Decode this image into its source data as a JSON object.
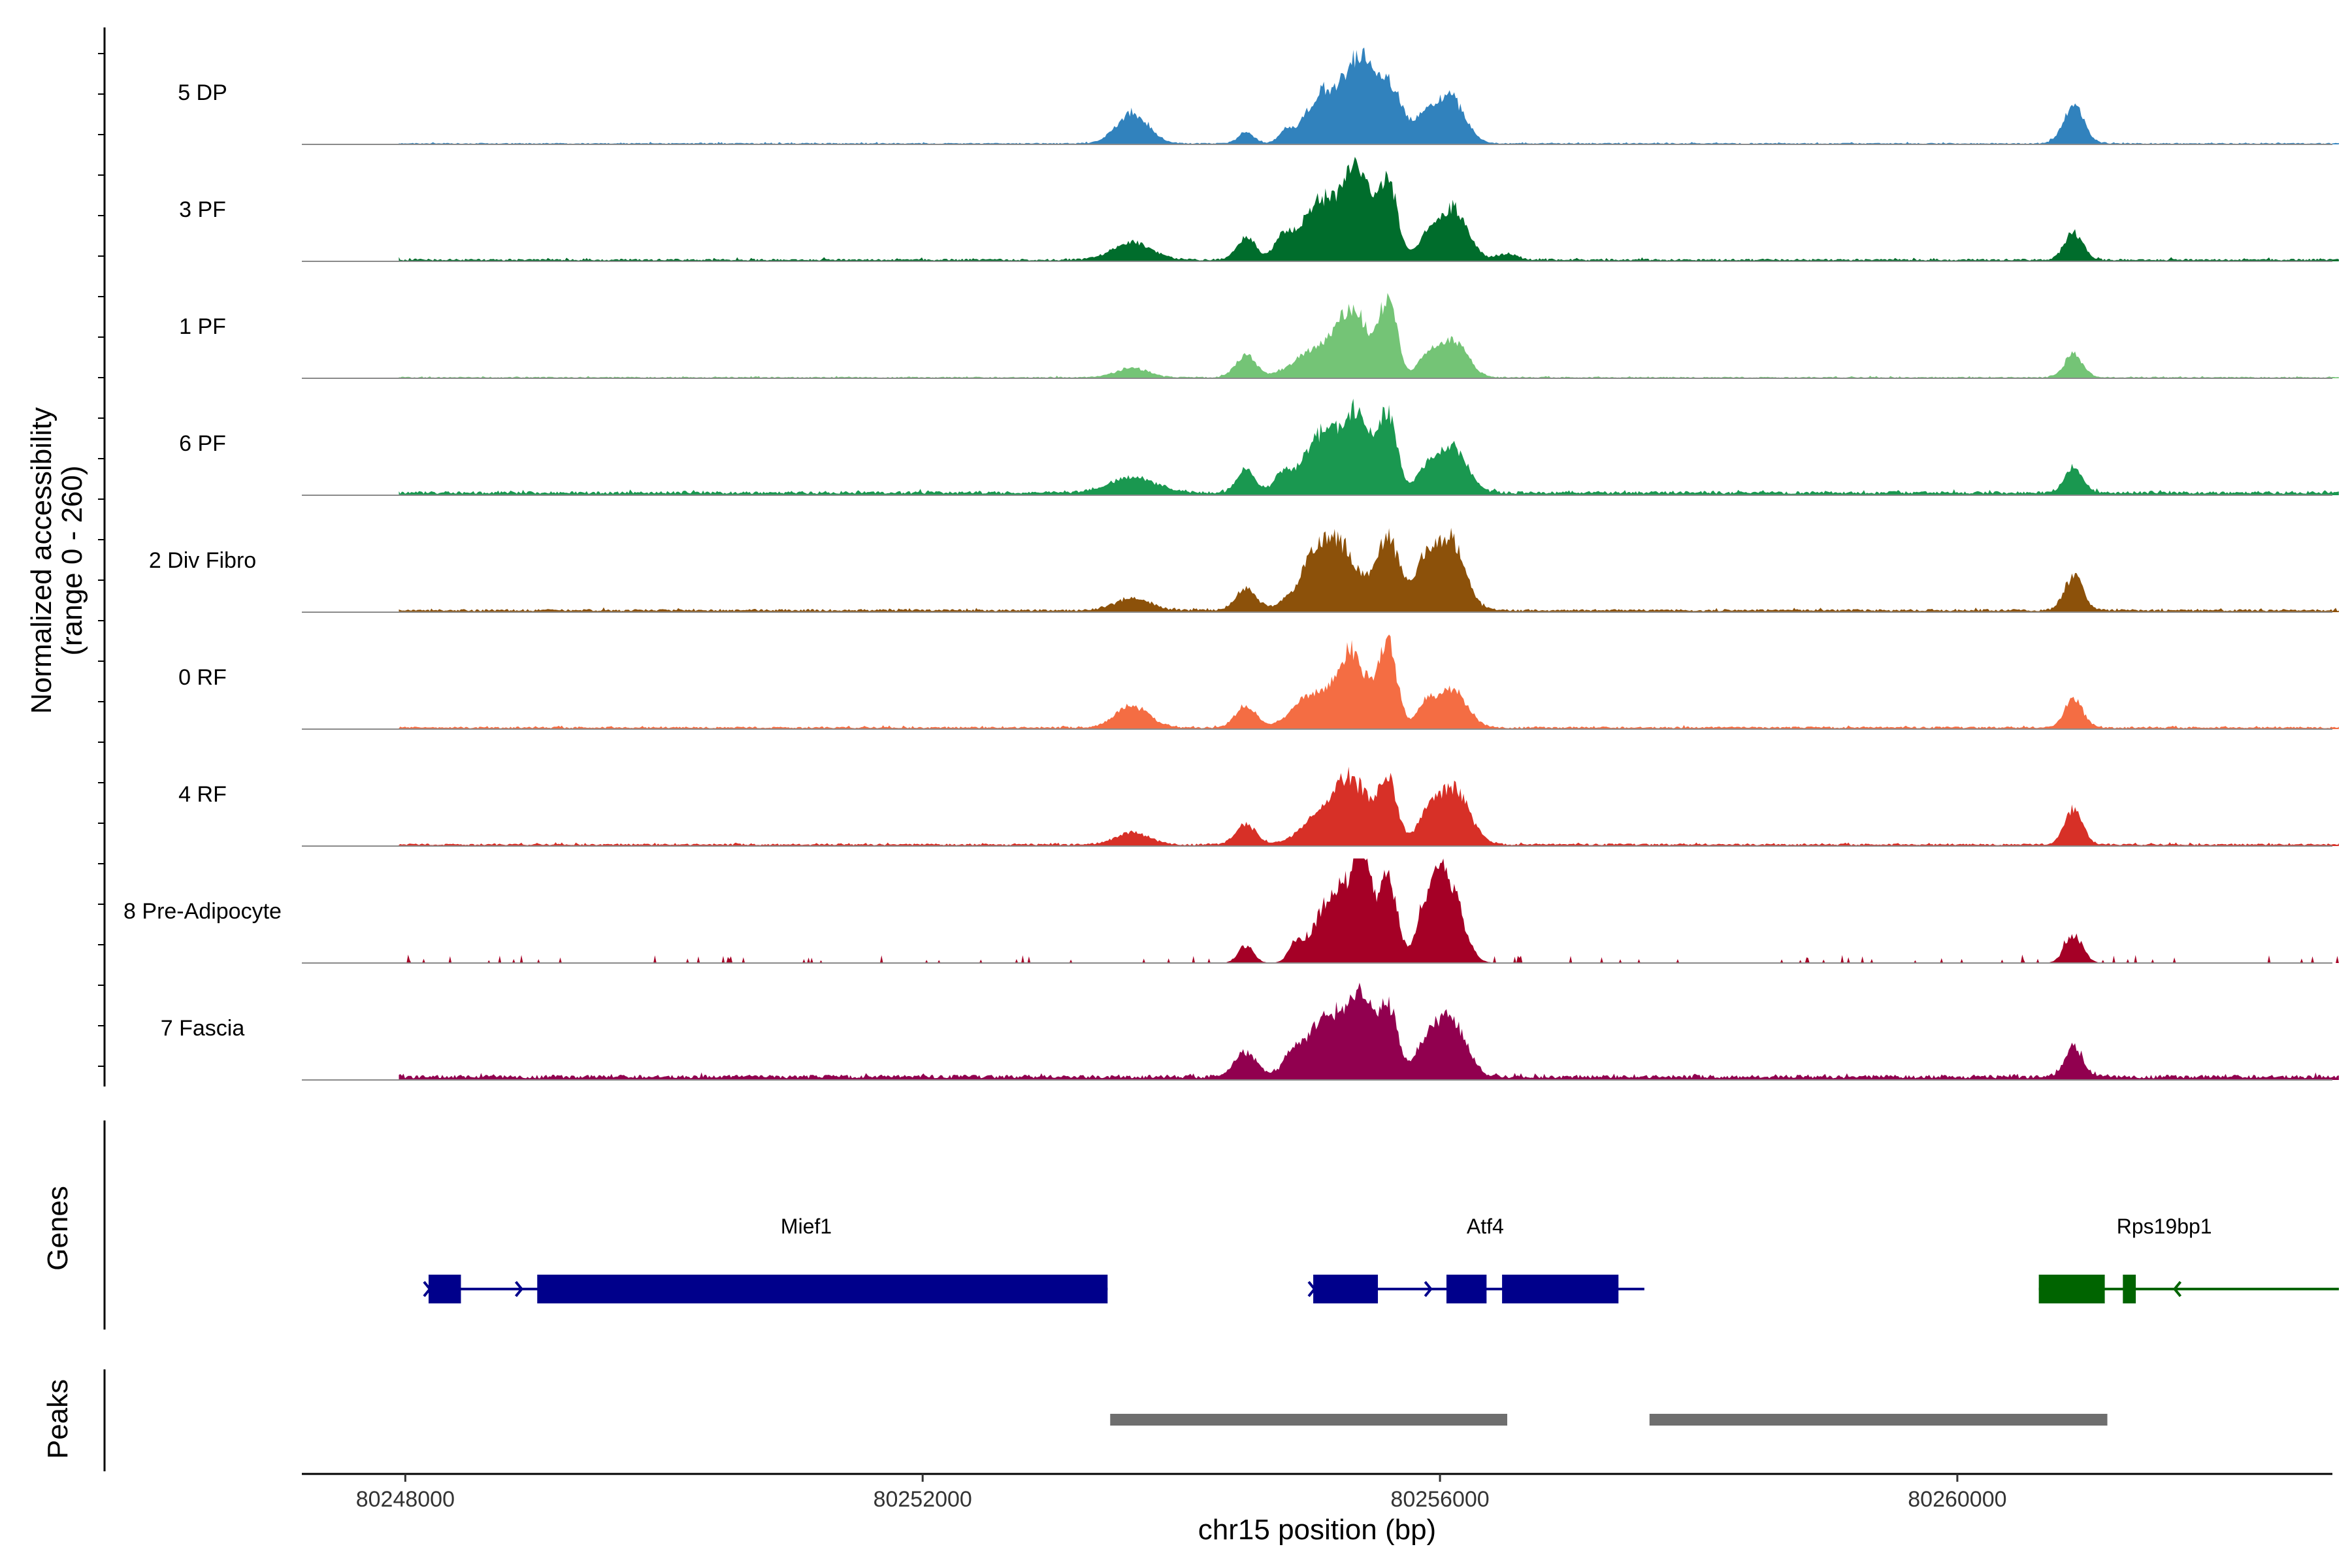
{
  "chart_data": {
    "type": "area",
    "title": "",
    "ylabel_line1": "Normalized accessibility",
    "ylabel_line2": "(range 0 - 260)",
    "ylim": [
      0,
      260
    ],
    "xlabel": "chr15 position (bp)",
    "xlim": [
      80247200,
      80262900
    ],
    "x_ticks": [
      80248000,
      80252000,
      80256000,
      80260000
    ],
    "x_tick_labels": [
      "80248000",
      "80252000",
      "80256000",
      "80260000"
    ],
    "signal_range": [
      80247950,
      80262950
    ],
    "tracks": [
      {
        "name": "5 DP",
        "color": "#3182BD",
        "base": 3,
        "noise": 2,
        "peaks": [
          [
            80253620,
            80,
            120
          ],
          [
            80254500,
            30,
            60
          ],
          [
            80254800,
            25,
            50
          ],
          [
            80255130,
            140,
            150
          ],
          [
            80255380,
            180,
            90
          ],
          [
            80255600,
            150,
            110
          ],
          [
            80255890,
            60,
            70
          ],
          [
            80256080,
            120,
            110
          ],
          [
            80260900,
            95,
            80
          ]
        ]
      },
      {
        "name": "3 PF",
        "color": "#006D2C",
        "base": 5,
        "noise": 3,
        "peaks": [
          [
            80253620,
            45,
            150
          ],
          [
            80254500,
            60,
            70
          ],
          [
            80254780,
            40,
            60
          ],
          [
            80255130,
            160,
            190
          ],
          [
            80255380,
            170,
            90
          ],
          [
            80255600,
            200,
            70
          ],
          [
            80255900,
            50,
            80
          ],
          [
            80256100,
            130,
            110
          ],
          [
            80256520,
            15,
            80
          ],
          [
            80260900,
            70,
            70
          ]
        ]
      },
      {
        "name": "1 PF",
        "color": "#74C476",
        "base": 3,
        "noise": 2,
        "peaks": [
          [
            80253620,
            25,
            120
          ],
          [
            80254500,
            55,
            80
          ],
          [
            80255000,
            60,
            150
          ],
          [
            80255320,
            170,
            130
          ],
          [
            80255600,
            185,
            70
          ],
          [
            80255900,
            50,
            70
          ],
          [
            80256100,
            95,
            110
          ],
          [
            80260900,
            60,
            70
          ]
        ]
      },
      {
        "name": "6 PF",
        "color": "#1A9850",
        "base": 8,
        "noise": 4,
        "peaks": [
          [
            80253620,
            40,
            180
          ],
          [
            80254500,
            60,
            70
          ],
          [
            80254780,
            40,
            60
          ],
          [
            80255130,
            160,
            170
          ],
          [
            80255380,
            150,
            90
          ],
          [
            80255600,
            200,
            70
          ],
          [
            80255900,
            55,
            80
          ],
          [
            80256100,
            120,
            110
          ],
          [
            80260900,
            65,
            70
          ]
        ]
      },
      {
        "name": "2 Div Fibro",
        "color": "#8C510A",
        "base": 6,
        "noise": 3,
        "peaks": [
          [
            80253620,
            30,
            140
          ],
          [
            80254500,
            55,
            80
          ],
          [
            80255150,
            200,
            180
          ],
          [
            80255600,
            175,
            90
          ],
          [
            80255880,
            110,
            80
          ],
          [
            80256080,
            180,
            110
          ],
          [
            80260900,
            90,
            70
          ]
        ]
      },
      {
        "name": "0 RF",
        "color": "#F46D43",
        "base": 5,
        "noise": 3,
        "peaks": [
          [
            80253620,
            55,
            130
          ],
          [
            80254500,
            55,
            80
          ],
          [
            80255000,
            80,
            140
          ],
          [
            80255320,
            190,
            120
          ],
          [
            80255600,
            200,
            70
          ],
          [
            80255900,
            60,
            70
          ],
          [
            80256100,
            95,
            110
          ],
          [
            80260900,
            75,
            70
          ]
        ]
      },
      {
        "name": "4 RF",
        "color": "#D73027",
        "base": 5,
        "noise": 3,
        "peaks": [
          [
            80253620,
            30,
            130
          ],
          [
            80254500,
            50,
            80
          ],
          [
            80255000,
            45,
            120
          ],
          [
            80255300,
            170,
            150
          ],
          [
            80255600,
            150,
            70
          ],
          [
            80255900,
            60,
            80
          ],
          [
            80256100,
            150,
            120
          ],
          [
            80260900,
            90,
            70
          ]
        ]
      },
      {
        "name": "8 Pre-Adipocyte",
        "color": "#A50026",
        "base": 0,
        "noise": 14,
        "peaks": [
          [
            80254500,
            45,
            60
          ],
          [
            80254880,
            40,
            50
          ],
          [
            80255200,
            190,
            150
          ],
          [
            80255400,
            220,
            70
          ],
          [
            80255600,
            210,
            70
          ],
          [
            80255900,
            100,
            80
          ],
          [
            80256050,
            220,
            110
          ],
          [
            80260900,
            70,
            70
          ]
        ]
      },
      {
        "name": "7 Fascia",
        "color": "#91004F",
        "base": 10,
        "noise": 5,
        "peaks": [
          [
            80254500,
            60,
            90
          ],
          [
            80254850,
            40,
            60
          ],
          [
            80255150,
            170,
            170
          ],
          [
            80255400,
            160,
            80
          ],
          [
            80255600,
            180,
            70
          ],
          [
            80255880,
            60,
            80
          ],
          [
            80256070,
            160,
            120
          ],
          [
            80260900,
            80,
            70
          ]
        ]
      }
    ],
    "genes_label": "Genes",
    "genes": [
      {
        "name": "Mief1",
        "color": "#00008B",
        "strand": "+",
        "start": 80248180,
        "end": 80253430,
        "label_pos": 80251100,
        "exons": [
          [
            80248180,
            80248430
          ],
          [
            80249020,
            80253430
          ]
        ]
      },
      {
        "name": "Atf4",
        "color": "#00008B",
        "strand": "+",
        "start": 80255020,
        "end": 80257580,
        "label_pos": 80256350,
        "exons": [
          [
            80255020,
            80255520
          ],
          [
            80256050,
            80256360
          ],
          [
            80256480,
            80257380
          ]
        ]
      },
      {
        "name": "Rps19bp1",
        "color": "#006400",
        "strand": "-",
        "start": 80260630,
        "end": 80262950,
        "label_pos": 80261600,
        "exons": [
          [
            80260630,
            80261140
          ],
          [
            80261280,
            80261380
          ]
        ]
      }
    ],
    "peaks_label": "Peaks",
    "peaks": [
      [
        80253450,
        80256520
      ],
      [
        80257620,
        80261160
      ]
    ],
    "peak_color": "#6E6E6E"
  }
}
